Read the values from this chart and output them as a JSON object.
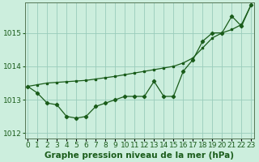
{
  "title": "Graphe pression niveau de la mer (hPa)",
  "bg_color": "#cceedd",
  "grid_color": "#99ccbb",
  "line_color": "#1a5c1a",
  "hours": [
    0,
    1,
    2,
    3,
    4,
    5,
    6,
    7,
    8,
    9,
    10,
    11,
    12,
    13,
    14,
    15,
    16,
    17,
    18,
    19,
    20,
    21,
    22,
    23
  ],
  "pressure_data": [
    1013.4,
    1013.2,
    1012.9,
    1012.85,
    1012.5,
    1012.45,
    1012.5,
    1012.8,
    1012.9,
    1013.0,
    1013.1,
    1013.1,
    1013.1,
    1013.55,
    1013.1,
    1013.1,
    1013.85,
    1014.2,
    1014.75,
    1015.0,
    1015.0,
    1015.5,
    1015.2,
    1015.85
  ],
  "pressure_trend": [
    1013.4,
    1013.45,
    1013.5,
    1013.52,
    1013.54,
    1013.56,
    1013.58,
    1013.62,
    1013.66,
    1013.7,
    1013.75,
    1013.8,
    1013.85,
    1013.9,
    1013.95,
    1014.0,
    1014.1,
    1014.25,
    1014.55,
    1014.85,
    1015.0,
    1015.1,
    1015.25,
    1015.85
  ],
  "ylim": [
    1011.85,
    1015.9
  ],
  "yticks": [
    1012,
    1013,
    1014,
    1015
  ],
  "xlim": [
    -0.3,
    23.3
  ],
  "title_fontsize": 7.5,
  "tick_fontsize": 6.5,
  "tick_color": "#1a5c1a"
}
